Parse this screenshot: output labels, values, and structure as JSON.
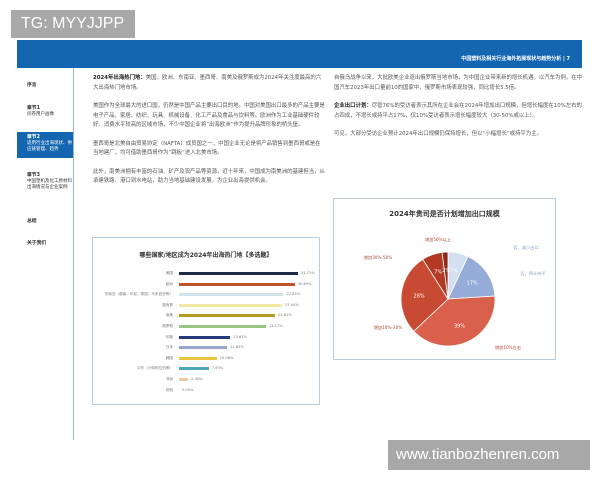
{
  "watermark_top": "TG: MYYJJPP",
  "watermark_bottom": "www.tianbozhenren.com",
  "header": {
    "title": "中国塑料及相关行业海外拓展现状与趋势分析",
    "page": "| 7"
  },
  "sidebar": {
    "items": [
      {
        "title": "序言",
        "sub": ""
      },
      {
        "title": "章节1",
        "sub": "问卷用户画像"
      },
      {
        "title": "章节2",
        "sub": "适用行业出海现状、供应链管理、趋势"
      },
      {
        "title": "章节3",
        "sub": "中国塑机及化工原材料出海情况与企业案例"
      },
      {
        "title": "总结",
        "sub": ""
      },
      {
        "title": "关于我们",
        "sub": ""
      }
    ],
    "active": 2
  },
  "left_col": {
    "p1_bold": "2024年出海热门地：",
    "p1": "美国、欧洲、东南亚、墨西哥、南美及俄罗斯成为2024年关注度最高的六大出海热门地市场。",
    "p2": "美国作为全球最大的进口国，仍然是中国产品主要出口目的地。中国对美国出口最多的产品主要是电子产品、家居、纺织、玩具、机械设备、化工产品及食品与饮料等。欧洲作为工业基础硬件较好、消费水平较高的区域市场，不少中国企业将“出海欧洲”作为提升品牌形象的桥头堡。",
    "p3": "墨西哥是北美自由贸易协定（NAFTA）成员国之一，中国企业无论是将产品销售到墨西哥或是在当地建厂，均可借助墨西哥作为“跳板”进入北美市场。",
    "p4": "此外，南美洲拥有丰富的石油、矿产及农产品等资源，近十年来，中国成为南美洲的基建担当，从承建铁路、港口到水电站，助力当地基础建设发展，为企业出海提供机会。"
  },
  "right_col": {
    "p1": "自俄乌战争以来，大批欧美企业退出俄罗斯当地市场，为中国企业带来新的增长机遇。以汽车为例，在中国汽车2023年出口量前10的国家中，俄罗斯市场表现较强，同比增长5.5倍。",
    "p2_bold": "企业出口计划：",
    "p2": "尽管76%的受访者表示其所在企业会在2024年增加出口规模，但增长幅度在10%左右的占四成，不增长或持平占17%，仅10%受访者表示增长幅度较大（30-50%或以上）。",
    "p3": "可见，大部分受访企业预计2024年出口规模仍保持增长，但以“小幅增长”或持平为主。"
  },
  "chart_data": [
    {
      "type": "bar",
      "orientation": "horizontal",
      "title": "哪些国家/地区成为2024年出海热门地【多选题】",
      "categories": [
        "美国",
        "欧洲",
        "东南亚（越南、印尼、泰国、马来西亚等）",
        "墨西哥",
        "南美",
        "俄罗斯",
        "印度",
        "日本",
        "韩国",
        "中东（沙特阿拉伯等）",
        "非洲",
        "其他"
      ],
      "values": [
        31.71,
        30.89,
        27.85,
        27.44,
        25.61,
        23.17,
        13.67,
        12.8,
        10.06,
        7.93,
        2.44,
        0.0
      ],
      "value_labels": [
        "31.71%",
        "30.89%",
        "27.85%",
        "27.44%",
        "25.61%",
        "23.17%",
        "13.67%",
        "12.80%",
        "10.06%",
        "7.93%",
        "2.44%",
        "0.00%"
      ],
      "colors": [
        "#1f2a44",
        "#c0532c",
        "#cfe3ea",
        "#f3e7a6",
        "#b59a22",
        "#9cc482",
        "#243a7a",
        "#97a6cf",
        "#e8c642",
        "#4aa9b5",
        "#e9c9a8",
        "#cccccc"
      ]
    },
    {
      "type": "pie",
      "title": "2024年贵司是否计划增加出口规模",
      "labels": [
        "否，减少出口",
        "否，预计持平",
        "增加10%左右",
        "增加10%-30%",
        "增加30%-50%",
        "增加50%以上"
      ],
      "values": [
        7,
        17,
        39,
        28,
        7,
        2
      ],
      "value_labels": [
        "7%",
        "17%",
        "39%",
        "28%",
        "7%",
        "2%"
      ],
      "colors": [
        "#d6dff0",
        "#95acd8",
        "#d9604c",
        "#c84a32",
        "#b23a25",
        "#8a2a18"
      ]
    }
  ]
}
